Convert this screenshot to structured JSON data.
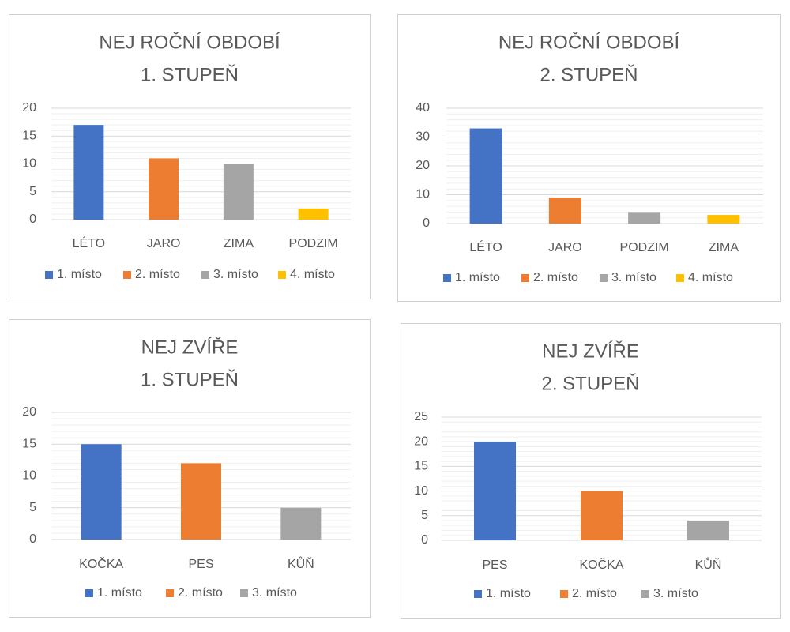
{
  "chart_data": [
    {
      "type": "bar",
      "title_lines": [
        "NEJ ROČNÍ OBDOBÍ",
        "1. STUPEŇ"
      ],
      "categories": [
        "LÉTO",
        "JARO",
        "ZIMA",
        "PODZIM"
      ],
      "values": [
        17,
        11,
        10,
        2
      ],
      "series_labels": [
        "1. místo",
        "2. místo",
        "3. místo",
        "4. místo"
      ],
      "ylim": [
        0,
        20
      ],
      "yticks": [
        0,
        5,
        10,
        15,
        20
      ],
      "grid": true,
      "legend": "bottom"
    },
    {
      "type": "bar",
      "title_lines": [
        "NEJ ROČNÍ OBDOBÍ",
        "2. STUPEŇ"
      ],
      "categories": [
        "LÉTO",
        "JARO",
        "PODZIM",
        "ZIMA"
      ],
      "values": [
        33,
        9,
        4,
        3
      ],
      "series_labels": [
        "1. místo",
        "2. místo",
        "3. místo",
        "4. místo"
      ],
      "ylim": [
        0,
        40
      ],
      "yticks": [
        0,
        10,
        20,
        30,
        40
      ],
      "grid": true,
      "legend": "bottom"
    },
    {
      "type": "bar",
      "title_lines": [
        "NEJ ZVÍŘE",
        "1. STUPEŇ"
      ],
      "categories": [
        "KOČKA",
        "PES",
        "KŮŇ"
      ],
      "values": [
        15,
        12,
        5
      ],
      "series_labels": [
        "1. místo",
        "2. místo",
        "3. místo"
      ],
      "ylim": [
        0,
        20
      ],
      "yticks": [
        0,
        5,
        10,
        15,
        20
      ],
      "grid": true,
      "legend": "bottom"
    },
    {
      "type": "bar",
      "title_lines": [
        "NEJ ZVÍŘE",
        "2. STUPEŇ"
      ],
      "categories": [
        "PES",
        "KOČKA",
        "KŮŇ"
      ],
      "values": [
        20,
        10,
        4
      ],
      "series_labels": [
        "1. místo",
        "2. místo",
        "3. místo"
      ],
      "ylim": [
        0,
        25
      ],
      "yticks": [
        0,
        5,
        10,
        15,
        20,
        25
      ],
      "grid": true,
      "legend": "bottom"
    }
  ],
  "colors": [
    "#4472c4",
    "#ed7d31",
    "#a5a5a5",
    "#ffc000"
  ]
}
